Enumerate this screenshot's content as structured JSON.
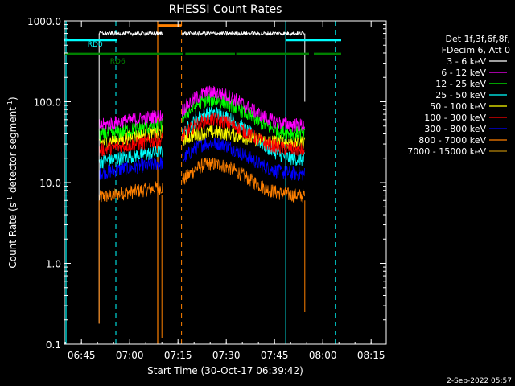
{
  "chart_data": {
    "type": "line",
    "title": "RHESSI Count Rates",
    "xlabel": "Start Time (30-Oct-17 06:39:42)",
    "ylabel_parts": {
      "pre": "Count Rate (s",
      "sup": "-1",
      "post": " detector segment",
      "sup2": "-1",
      "end": ")"
    },
    "x_unit": "minutes since 06:39:42",
    "xlim": [
      0,
      100
    ],
    "ylim": [
      0.1,
      1000
    ],
    "y_scale": "log",
    "x_ticks": [
      {
        "value": 5.3,
        "label": "06:45"
      },
      {
        "value": 20.3,
        "label": "07:00"
      },
      {
        "value": 35.3,
        "label": "07:15"
      },
      {
        "value": 50.3,
        "label": "07:30"
      },
      {
        "value": 65.3,
        "label": "07:45"
      },
      {
        "value": 80.3,
        "label": "08:00"
      },
      {
        "value": 95.3,
        "label": "08:15"
      }
    ],
    "y_ticks": [
      {
        "value": 0.1,
        "label": "0.1"
      },
      {
        "value": 1.0,
        "label": "1.0"
      },
      {
        "value": 10.0,
        "label": "10.0"
      },
      {
        "value": 100.0,
        "label": "100.0"
      },
      {
        "value": 1000.0,
        "label": "1000.0"
      }
    ],
    "legend_header": [
      "Det 1f,3f,6f,8f,",
      "FDecim 6, Att 0"
    ],
    "series": [
      {
        "name": "3 - 6 keV",
        "color": "#ffffff",
        "level": 700,
        "flare_peak": 700,
        "pre": 700
      },
      {
        "name": "6 - 12 keV",
        "color": "#ff00ff",
        "level": 48,
        "flare_peak": 130,
        "pre": 50
      },
      {
        "name": "12 - 25 keV",
        "color": "#00ff00",
        "level": 38,
        "flare_peak": 105,
        "pre": 38
      },
      {
        "name": "25 - 50 keV",
        "color": "#00ffff",
        "level": 18,
        "flare_peak": 72,
        "pre": 18
      },
      {
        "name": "50 - 100 keV",
        "color": "#ffff00",
        "level": 30,
        "flare_peak": 42,
        "pre": 31
      },
      {
        "name": "100 - 300 keV",
        "color": "#ff0000",
        "level": 24,
        "flare_peak": 60,
        "pre": 25
      },
      {
        "name": "300 - 800 keV",
        "color": "#0000ff",
        "level": 12,
        "flare_peak": 31,
        "pre": 13
      },
      {
        "name": "800 - 7000 keV",
        "color": "#ff8000",
        "level": 6.5,
        "flare_peak": 17,
        "pre": 6.5
      },
      {
        "name": "7000 - 15000 keV",
        "color": "#b8860b",
        "level": 0.0,
        "flare_peak": 0.0,
        "pre": 0.0
      }
    ],
    "segments": [
      [
        10.8,
        30.5
      ],
      [
        36.6,
        74.7
      ]
    ],
    "attenuator_markers": {
      "cyan_solid": [
        0.5,
        68.8
      ],
      "cyan_dashed": [
        16.0,
        84.2
      ],
      "orange_solid": [
        29.0
      ],
      "orange_dashed": [
        36.4
      ]
    },
    "rd_bars": [
      {
        "label": "RD0",
        "color": "#00ffff",
        "y": 580,
        "spans": [
          [
            0,
            16.3
          ],
          [
            69.0,
            86.0
          ]
        ]
      },
      {
        "label": "RD6",
        "color": "#008000",
        "y": 390,
        "spans": [
          [
            0,
            37.0
          ],
          [
            37.6,
            53.0
          ],
          [
            53.4,
            76.0
          ],
          [
            77.5,
            86.0
          ]
        ]
      }
    ],
    "footer": "2-Sep-2022 05:57"
  }
}
